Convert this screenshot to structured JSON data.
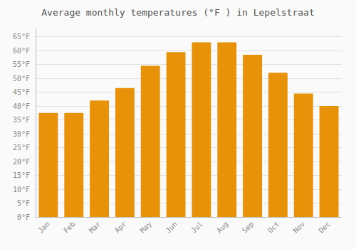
{
  "chart_data": {
    "type": "bar",
    "title": "Average monthly temperatures (°F ) in Lepelstraat",
    "categories": [
      "Jan",
      "Feb",
      "Mar",
      "Apr",
      "May",
      "Jun",
      "Jul",
      "Aug",
      "Sep",
      "Oct",
      "Nov",
      "Dec"
    ],
    "values": [
      37.5,
      37.5,
      42,
      46.5,
      54.5,
      59.5,
      63,
      63,
      58.5,
      52,
      44.5,
      40
    ],
    "color": "#E8920A",
    "ylim": [
      0,
      68
    ],
    "yticks": [
      {
        "value": 0,
        "label": "0°F"
      },
      {
        "value": 5,
        "label": "5°F"
      },
      {
        "value": 10,
        "label": "10°F"
      },
      {
        "value": 15,
        "label": "15°F"
      },
      {
        "value": 20,
        "label": "20°F"
      },
      {
        "value": 25,
        "label": "25°F"
      },
      {
        "value": 30,
        "label": "30°F"
      },
      {
        "value": 35,
        "label": "35°F"
      },
      {
        "value": 40,
        "label": "40°F"
      },
      {
        "value": 45,
        "label": "45°F"
      },
      {
        "value": 50,
        "label": "50°F"
      },
      {
        "value": 55,
        "label": "55°F"
      },
      {
        "value": 60,
        "label": "60°F"
      },
      {
        "value": 65,
        "label": "65°F"
      }
    ],
    "grid": true
  }
}
